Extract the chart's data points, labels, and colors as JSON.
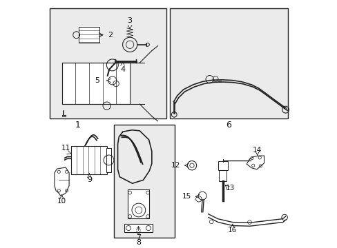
{
  "bg_color": "#ffffff",
  "label_color": "#111111",
  "line_color": "#222222"
}
